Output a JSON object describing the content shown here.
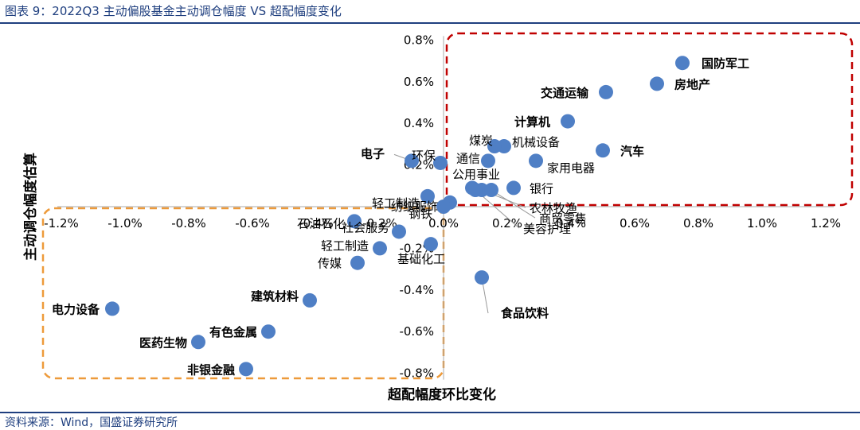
{
  "header": {
    "title": "图表 9：2022Q3 主动偏股基金主动调仓幅度 VS 超配幅度变化"
  },
  "footer": {
    "source": "资料来源：Wind，国盛证券研究所"
  },
  "colors": {
    "point": "#4f7fc5",
    "box_positive": "#c00000",
    "box_negative": "#ed9a3a",
    "brand": "#1f3f7f"
  },
  "chart_data": {
    "type": "scatter",
    "title": "2022Q3 主动偏股基金主动调仓幅度 VS 超配幅度变化",
    "xlabel": "超配幅度环比变化",
    "ylabel": "主动调仓幅度估算",
    "xlim": [
      -1.2,
      1.2
    ],
    "ylim": [
      -0.8,
      0.8
    ],
    "x_ticks": [
      "-1.2%",
      "-1.0%",
      "-0.8%",
      "-0.6%",
      "-0.4%",
      "-0.2%",
      "0.0%",
      "0.2%",
      "0.4%",
      "0.6%",
      "0.8%",
      "1.0%",
      "1.2%"
    ],
    "y_ticks": [
      "-0.8%",
      "-0.6%",
      "-0.4%",
      "-0.2%",
      "0.2%",
      "0.4%",
      "0.6%",
      "0.8%"
    ],
    "grid": false,
    "points": [
      {
        "label": "国防军工",
        "x": 0.75,
        "y": 0.69,
        "bold": true
      },
      {
        "label": "房地产",
        "x": 0.67,
        "y": 0.59,
        "bold": true
      },
      {
        "label": "交通运输",
        "x": 0.51,
        "y": 0.55,
        "bold": true
      },
      {
        "label": "计算机",
        "x": 0.39,
        "y": 0.41,
        "bold": true
      },
      {
        "label": "汽车",
        "x": 0.5,
        "y": 0.27,
        "bold": true
      },
      {
        "label": "家用电器",
        "x": 0.29,
        "y": 0.22,
        "bold": false
      },
      {
        "label": "机械设备",
        "x": 0.19,
        "y": 0.29,
        "bold": false
      },
      {
        "label": "煤炭",
        "x": 0.16,
        "y": 0.29,
        "bold": false
      },
      {
        "label": "通信",
        "x": 0.14,
        "y": 0.22,
        "bold": false
      },
      {
        "label": "银行",
        "x": 0.22,
        "y": 0.09,
        "bold": false
      },
      {
        "label": "公用事业",
        "x": 0.09,
        "y": 0.09,
        "bold": false
      },
      {
        "label": "农林牧渔",
        "x": 0.12,
        "y": 0.08,
        "bold": false
      },
      {
        "label": "商贸零售",
        "x": 0.15,
        "y": 0.08,
        "bold": false
      },
      {
        "label": "美容护理",
        "x": 0.1,
        "y": 0.08,
        "bold": false
      },
      {
        "label": "电子",
        "x": -0.1,
        "y": 0.22,
        "bold": true
      },
      {
        "label": "环保",
        "x": -0.01,
        "y": 0.21,
        "bold": false
      },
      {
        "label": "轻工制造",
        "x": -0.05,
        "y": 0.05,
        "bold": false
      },
      {
        "label": "纺织服饰",
        "x": 0.02,
        "y": 0.02,
        "bold": false
      },
      {
        "label": "钢铁",
        "x": 0.0,
        "y": 0.0,
        "bold": false
      },
      {
        "label": "石油石化",
        "x": -0.28,
        "y": -0.07,
        "bold": false
      },
      {
        "label": "社会服务",
        "x": -0.14,
        "y": -0.12,
        "bold": false
      },
      {
        "label": "轻工制造",
        "x": -0.2,
        "y": -0.2,
        "bold": false
      },
      {
        "label": "基础化工",
        "x": -0.04,
        "y": -0.18,
        "bold": false
      },
      {
        "label": "传媒",
        "x": -0.27,
        "y": -0.27,
        "bold": false
      },
      {
        "label": "食品饮料",
        "x": 0.12,
        "y": -0.34,
        "bold": true
      },
      {
        "label": "建筑材料",
        "x": -0.42,
        "y": -0.45,
        "bold": true
      },
      {
        "label": "电力设备",
        "x": -1.04,
        "y": -0.49,
        "bold": true
      },
      {
        "label": "有色金属",
        "x": -0.55,
        "y": -0.6,
        "bold": true
      },
      {
        "label": "医药生物",
        "x": -0.77,
        "y": -0.65,
        "bold": true
      },
      {
        "label": "非银金融",
        "x": -0.62,
        "y": -0.78,
        "bold": true
      }
    ]
  }
}
